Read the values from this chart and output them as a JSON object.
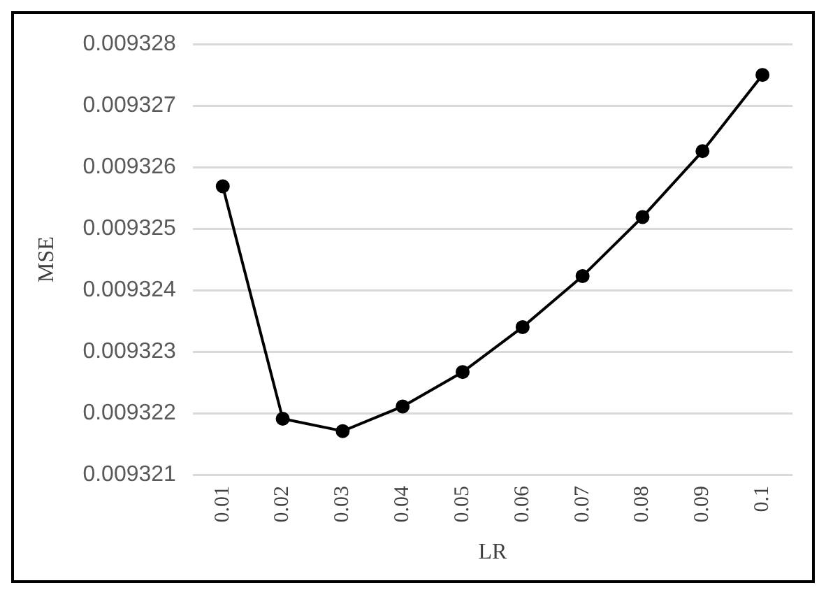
{
  "chart_data": {
    "type": "line",
    "xlabel": "LR",
    "ylabel": "MSE",
    "categories": [
      "0.01",
      "0.02",
      "0.03",
      "0.04",
      "0.05",
      "0.06",
      "0.07",
      "0.08",
      "0.09",
      "0.1"
    ],
    "series": [
      {
        "color": "#000000",
        "values": [
          0.00932569,
          0.00932191,
          0.00932171,
          0.00932211,
          0.00932267,
          0.0093234,
          0.00932423,
          0.00932519,
          0.00932626,
          0.0093275
        ]
      }
    ],
    "ylim": [
      0.009321,
      0.009328
    ],
    "yticks": [
      0.009321,
      0.009322,
      0.009323,
      0.009324,
      0.009325,
      0.009326,
      0.009327,
      0.009328
    ],
    "grid": "y",
    "legend": false,
    "marker": "circle",
    "line_style": "solid"
  }
}
